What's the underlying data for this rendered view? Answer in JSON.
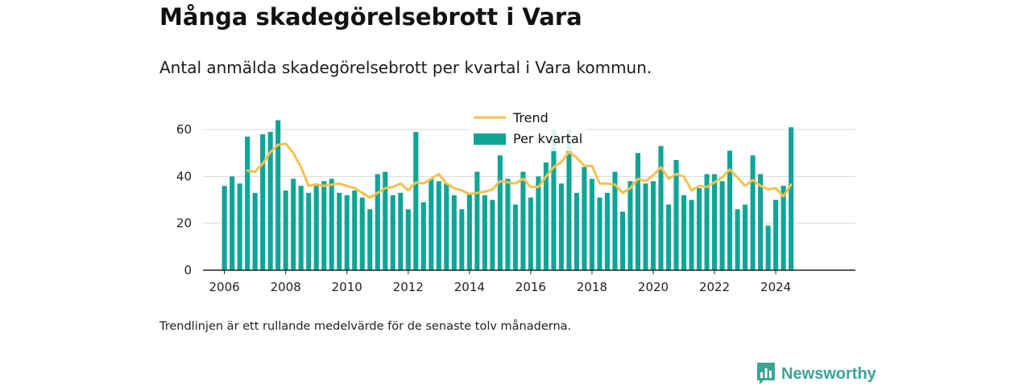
{
  "title": "Många skadegörelsebrott i Vara",
  "subtitle": "Antal anmälda skadegörelsebrott per kvartal i Vara kommun.",
  "footnote": "Trendlinjen är ett rullande medelvärde för de senaste tolv månaderna.",
  "logo": {
    "text": "Newsworthy",
    "icon": "newsworthy-logo-icon"
  },
  "colors": {
    "bar": "#0ea597",
    "trend": "#f5c14e",
    "grid": "#d9d9d9",
    "axis": "#222222",
    "text": "#222222"
  },
  "chart_data": {
    "type": "bar",
    "xlim": [
      2005.3,
      2026.6
    ],
    "ylim": [
      0,
      70
    ],
    "x_ticks": [
      2006,
      2008,
      2010,
      2012,
      2014,
      2016,
      2018,
      2020,
      2022,
      2024
    ],
    "y_ticks": [
      0,
      20,
      40,
      60
    ],
    "grid": true,
    "legend_position": "top-center",
    "series": [
      {
        "name": "Per kvartal",
        "type": "bar",
        "x": [
          2006.0,
          2006.25,
          2006.5,
          2006.75,
          2007.0,
          2007.25,
          2007.5,
          2007.75,
          2008.0,
          2008.25,
          2008.5,
          2008.75,
          2009.0,
          2009.25,
          2009.5,
          2009.75,
          2010.0,
          2010.25,
          2010.5,
          2010.75,
          2011.0,
          2011.25,
          2011.5,
          2011.75,
          2012.0,
          2012.25,
          2012.5,
          2012.75,
          2013.0,
          2013.25,
          2013.5,
          2013.75,
          2014.0,
          2014.25,
          2014.5,
          2014.75,
          2015.0,
          2015.25,
          2015.5,
          2015.75,
          2016.0,
          2016.25,
          2016.5,
          2016.75,
          2017.0,
          2017.25,
          2017.5,
          2017.75,
          2018.0,
          2018.25,
          2018.5,
          2018.75,
          2019.0,
          2019.25,
          2019.5,
          2019.75,
          2020.0,
          2020.25,
          2020.5,
          2020.75,
          2021.0,
          2021.25,
          2021.5,
          2021.75,
          2022.0,
          2022.25,
          2022.5,
          2022.75,
          2023.0,
          2023.25,
          2023.5,
          2023.75,
          2024.0,
          2024.25,
          2024.5
        ],
        "values": [
          36,
          40,
          37,
          57,
          33,
          58,
          59,
          64,
          34,
          39,
          36,
          33,
          37,
          38,
          39,
          33,
          32,
          34,
          31,
          26,
          41,
          42,
          32,
          33,
          26,
          59,
          29,
          39,
          38,
          37,
          32,
          26,
          33,
          42,
          32,
          30,
          49,
          39,
          28,
          42,
          31,
          40,
          46,
          60,
          37,
          60,
          33,
          44,
          39,
          31,
          33,
          42,
          25,
          38,
          50,
          37,
          38,
          53,
          28,
          47,
          32,
          30,
          35,
          41,
          41,
          38,
          51,
          26,
          28,
          49,
          41,
          19,
          30,
          36,
          61
        ]
      },
      {
        "name": "Trend",
        "type": "line",
        "x": [
          2006.75,
          2007.0,
          2007.25,
          2007.5,
          2007.75,
          2008.0,
          2008.25,
          2008.5,
          2008.75,
          2009.0,
          2009.25,
          2009.5,
          2009.75,
          2010.0,
          2010.25,
          2010.5,
          2010.75,
          2011.0,
          2011.25,
          2011.5,
          2011.75,
          2012.0,
          2012.25,
          2012.5,
          2012.75,
          2013.0,
          2013.25,
          2013.5,
          2013.75,
          2014.0,
          2014.25,
          2014.5,
          2014.75,
          2015.0,
          2015.25,
          2015.5,
          2015.75,
          2016.0,
          2016.25,
          2016.5,
          2016.75,
          2017.0,
          2017.25,
          2017.5,
          2017.75,
          2018.0,
          2018.25,
          2018.5,
          2018.75,
          2019.0,
          2019.25,
          2019.5,
          2019.75,
          2020.0,
          2020.25,
          2020.5,
          2020.75,
          2021.0,
          2021.25,
          2021.5,
          2021.75,
          2022.0,
          2022.25,
          2022.5,
          2022.75,
          2023.0,
          2023.25,
          2023.5,
          2023.75,
          2024.0,
          2024.25,
          2024.5
        ],
        "values": [
          42.5,
          42,
          45.5,
          50.5,
          53.5,
          54,
          50,
          44,
          36,
          36.5,
          36,
          36.5,
          37,
          36,
          35,
          33,
          31,
          33,
          35,
          35.5,
          37,
          34,
          37.5,
          37,
          39,
          41,
          37,
          35,
          34,
          32.5,
          33,
          33.5,
          34.5,
          38,
          37.5,
          37,
          39,
          35.5,
          35.5,
          40,
          44,
          46,
          50.5,
          48,
          44.5,
          44.5,
          37,
          37,
          36.5,
          33,
          35,
          39,
          38,
          40.5,
          44,
          39,
          41,
          40,
          34,
          36,
          35.5,
          37.5,
          39.5,
          43,
          39.5,
          36,
          38.5,
          36,
          34.5,
          35,
          31.5,
          36.5
        ]
      }
    ]
  }
}
